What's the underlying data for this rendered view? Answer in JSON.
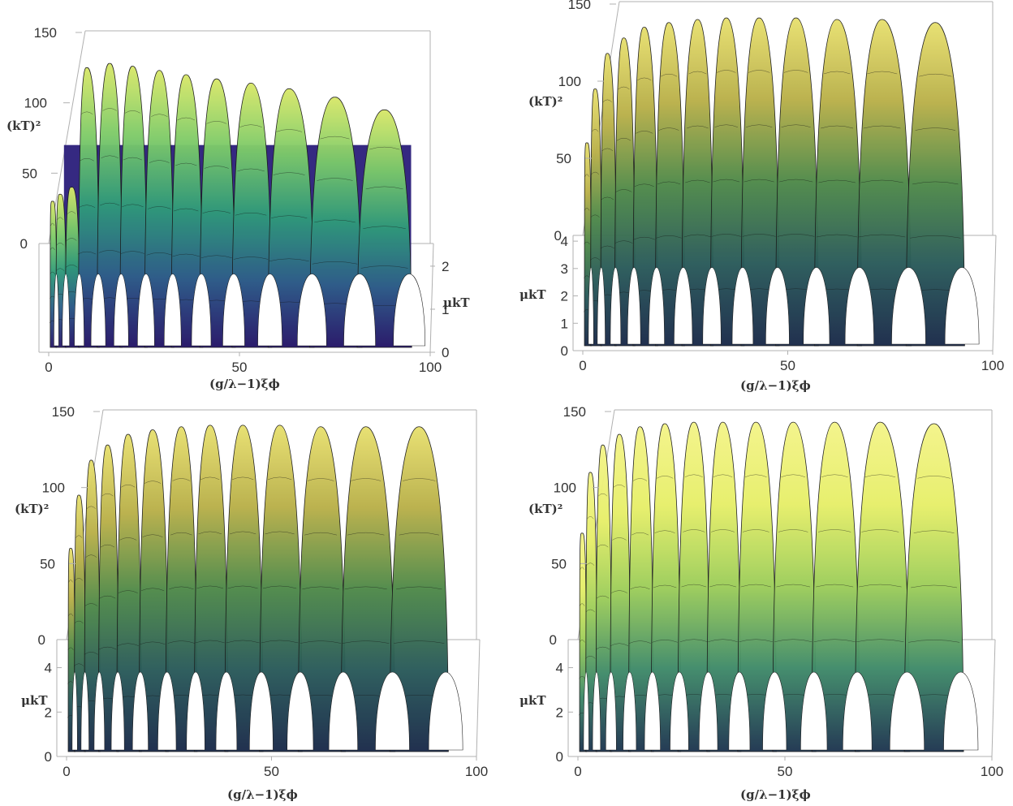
{
  "chart_data": [
    {
      "type": "area",
      "panel": "top-left",
      "xlabel": "(g/λ−1)ξϕ",
      "ylabel": "μkT",
      "zlabel": "(kT)²",
      "xticks": [
        "0",
        "50",
        "100"
      ],
      "yticks": [
        "0",
        "1",
        "2"
      ],
      "zticks": [
        "0",
        "50",
        "100",
        "150"
      ],
      "xlim": [
        0,
        100
      ],
      "ylim": [
        0,
        2.4
      ],
      "zlim": [
        0,
        150
      ],
      "ridge_x": [
        1,
        3,
        6,
        10,
        16,
        22,
        29,
        36,
        44,
        53,
        63,
        75,
        88
      ],
      "ridge_peak": [
        30,
        35,
        40,
        125,
        128,
        126,
        123,
        120,
        117,
        114,
        110,
        104,
        95
      ],
      "floor_z": 70,
      "colormap": [
        "#2b1b6b",
        "#2f5e8a",
        "#2f9a7a",
        "#7ecb6a",
        "#d9e86a"
      ]
    },
    {
      "type": "area",
      "panel": "top-right",
      "xlabel": "(g/λ−1)ξϕ",
      "ylabel": "μkT",
      "zlabel": "(kT)²",
      "xticks": [
        "0",
        "50",
        "100"
      ],
      "yticks": [
        "0",
        "1",
        "2",
        "3",
        "4"
      ],
      "zticks": [
        "0",
        "50",
        "100",
        "150"
      ],
      "xlim": [
        0,
        100
      ],
      "ylim": [
        0,
        4
      ],
      "zlim": [
        0,
        150
      ],
      "ridge_x": [
        1,
        3,
        6,
        10,
        15,
        21,
        28,
        35,
        43,
        52,
        62,
        73,
        86
      ],
      "ridge_peak": [
        60,
        95,
        118,
        128,
        135,
        138,
        140,
        141,
        141,
        141,
        140,
        140,
        138
      ],
      "colormap": [
        "#1a2a4a",
        "#2a5a5a",
        "#4f8a4a",
        "#b9b04a",
        "#e8e070"
      ]
    },
    {
      "type": "area",
      "panel": "bottom-left",
      "xlabel": "(g/λ−1)ξϕ",
      "ylabel": "μkT",
      "zlabel": "(kT)²",
      "xticks": [
        "0",
        "50",
        "100"
      ],
      "yticks": [
        "0",
        "2",
        "4"
      ],
      "zticks": [
        "0",
        "50",
        "100",
        "150"
      ],
      "xlim": [
        0,
        100
      ],
      "ylim": [
        0,
        5
      ],
      "zlim": [
        0,
        150
      ],
      "ridge_x": [
        1,
        3,
        6,
        10,
        15,
        21,
        28,
        35,
        43,
        52,
        62,
        73,
        86
      ],
      "ridge_peak": [
        60,
        95,
        118,
        128,
        135,
        138,
        140,
        141,
        141,
        141,
        140,
        140,
        140
      ],
      "colormap": [
        "#1a2a4a",
        "#2a5a5a",
        "#4f8a4a",
        "#b9b04a",
        "#e8e070"
      ]
    },
    {
      "type": "area",
      "panel": "bottom-right",
      "xlabel": "(g/λ−1)ξϕ",
      "ylabel": "μkT",
      "zlabel": "(kT)²",
      "xticks": [
        "0",
        "50",
        "100"
      ],
      "yticks": [
        "0",
        "2",
        "4"
      ],
      "zticks": [
        "0",
        "50",
        "100",
        "150"
      ],
      "xlim": [
        0,
        100
      ],
      "ylim": [
        0,
        5
      ],
      "zlim": [
        0,
        150
      ],
      "ridge_x": [
        1,
        3,
        6,
        10,
        15,
        21,
        28,
        35,
        43,
        52,
        62,
        73,
        86
      ],
      "ridge_peak": [
        70,
        110,
        128,
        135,
        140,
        142,
        143,
        143,
        143,
        143,
        143,
        143,
        142
      ],
      "colormap": [
        "#1f3550",
        "#3f8a6a",
        "#9ccd5a",
        "#e7ef6a",
        "#f4f48a"
      ]
    }
  ]
}
